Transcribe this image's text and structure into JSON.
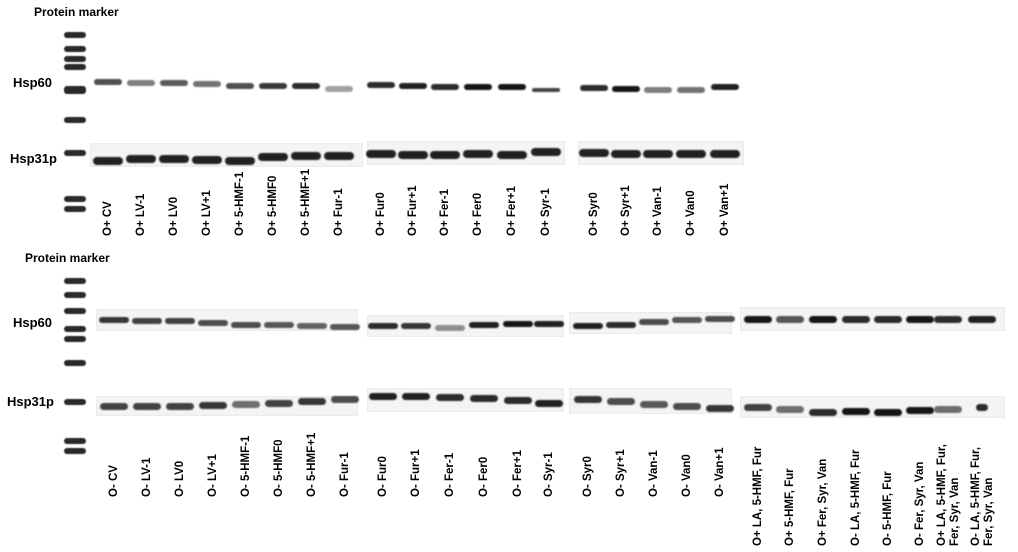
{
  "top_panel": {
    "header": "Protein marker",
    "protein_top": "Hsp60",
    "protein_bottom": "Hsp31p",
    "lanes": [
      "O+ CV",
      "O+ LV-1",
      "O+ LV0",
      "O+ LV+1",
      "O+ 5-HMF-1",
      "O+ 5-HMF0",
      "O+ 5-HMF+1",
      "O+ Fur-1",
      "O+ Fur0",
      "O+ Fur+1",
      "O+ Fer-1",
      "O+ Fer0",
      "O+ Fer+1",
      "O+ Syr-1",
      "O+ Syr0",
      "O+ Syr+1",
      "O+ Van-1",
      "O+ Van0",
      "O+ Van+1"
    ]
  },
  "bottom_panel": {
    "header": "Protein marker",
    "protein_top": "Hsp60",
    "protein_bottom": "Hsp31p",
    "lanes": [
      "O- CV",
      "O- LV-1",
      "O- LV0",
      "O- LV+1",
      "O- 5-HMF-1",
      "O- 5-HMF0",
      "O- 5-HMF+1",
      "O- Fur-1",
      "O- Fur0",
      "O- Fur+1",
      "O- Fer-1",
      "O- Fer0",
      "O- Fer+1",
      "O- Syr-1",
      "O- Syr0",
      "O- Syr+1",
      "O- Van-1",
      "O- Van0",
      "O- Van+1"
    ],
    "extra_lanes": [
      {
        "line1": "O+ LA, 5-HMF, Fur",
        "line2": ""
      },
      {
        "line1": "O+ 5-HMF, Fur",
        "line2": ""
      },
      {
        "line1": "O+ Fer, Syr, Van",
        "line2": ""
      },
      {
        "line1": "O- LA, 5-HMF, Fur",
        "line2": ""
      },
      {
        "line1": "O- 5-HMF, Fur",
        "line2": ""
      },
      {
        "line1": "O- Fer, Syr, Van",
        "line2": ""
      },
      {
        "line1": "O+ LA, 5-HMF, Fur,",
        "line2": "Fer, Syr, Van"
      },
      {
        "line1": "O- LA, 5-HMF, Fur,",
        "line2": "Fer, Syr, Van"
      }
    ]
  },
  "colors": {
    "band": "#161616",
    "background": "#ffffff"
  }
}
